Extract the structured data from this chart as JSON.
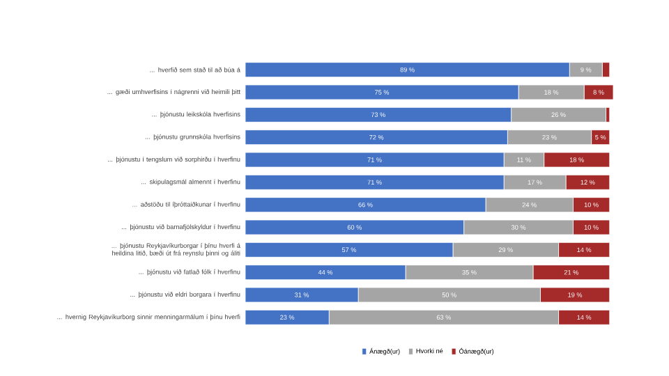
{
  "chart_data": {
    "type": "bar",
    "orientation": "horizontal",
    "stacked": true,
    "legend": "bottom",
    "categories": [
      "... hverfið sem stað til að búa á",
      "... gæði umhverfisins í nágrenni við heimili þitt",
      "... þjónustu leikskóla hverfisins",
      "... þjónustu grunnskóla hverfisins",
      "... þjónustu í tengslum við sorphirðu í hverfinu",
      "... skipulagsmál almennt í hverfinu",
      "... aðstöðu til íþróttaiðkunar í hverfinu",
      "... þjónustu við barnafjölskyldur í hverfinu",
      "... þjónustu Reykjavíkurborgar í þínu hverfi á heildina litið, bæði út frá reynslu þinni og áliti",
      "... þjónustu við fatlað fólk í hverfinu",
      "... þjónustu við eldri borgara í hverfinu",
      "... hvernig Reykjavíkurborg sinnir menningarmálum í þínu hverfi"
    ],
    "series": [
      {
        "name": "Ánægð(ur)",
        "color": "#4472c4",
        "values": [
          89,
          75,
          73,
          72,
          71,
          71,
          66,
          60,
          57,
          44,
          31,
          23
        ],
        "value_labels": [
          "89 %",
          "75 %",
          "73 %",
          "72 %",
          "71 %",
          "71 %",
          "66 %",
          "60 %",
          "57 %",
          "44 %",
          "31 %",
          "23 %"
        ]
      },
      {
        "name": "Hvorki né",
        "color": "#a5a5a5",
        "values": [
          9,
          18,
          26,
          23,
          11,
          17,
          24,
          30,
          29,
          35,
          50,
          63
        ],
        "value_labels": [
          "9 %",
          "18 %",
          "26 %",
          "23 %",
          "11 %",
          "17 %",
          "24 %",
          "30 %",
          "29 %",
          "35 %",
          "50 %",
          "63 %"
        ]
      },
      {
        "name": "Óánægð(ur)",
        "color": "#a52a2a",
        "values": [
          2,
          8,
          1,
          5,
          18,
          12,
          10,
          10,
          14,
          21,
          19,
          14
        ],
        "value_labels": [
          null,
          "8 %",
          null,
          "5 %",
          "18 %",
          "12 %",
          "10 %",
          "10 %",
          "14 %",
          "21 %",
          "19 %",
          "14 %"
        ]
      }
    ]
  }
}
